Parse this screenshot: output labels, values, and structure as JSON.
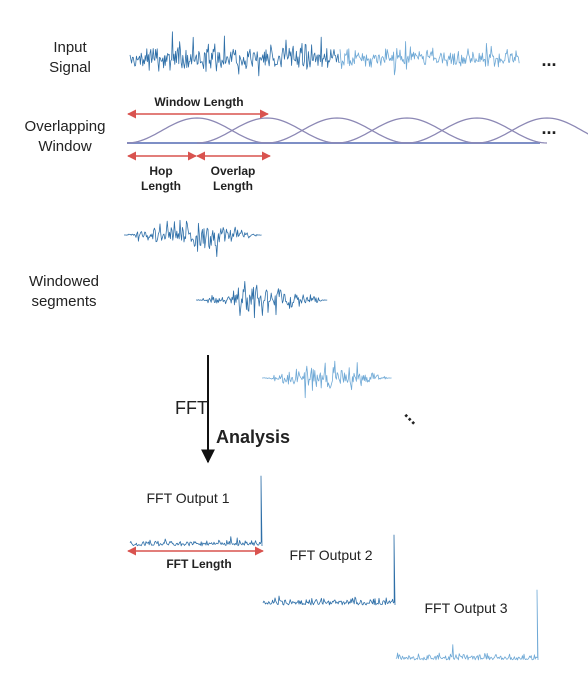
{
  "labels": {
    "input_signal_1": "Input",
    "input_signal_2": "Signal",
    "overlap_window_1": "Overlapping",
    "overlap_window_2": "Window",
    "window_length": "Window Length",
    "hop_length_1": "Hop",
    "hop_length_2": "Length",
    "overlap_length_1": "Overlap",
    "overlap_length_2": "Length",
    "windowed_1": "Windowed",
    "windowed_2": "segments",
    "fft": "FFT",
    "analysis": "Analysis",
    "fft_output_1": "FFT Output 1",
    "fft_output_2": "FFT Output 2",
    "fft_output_3": "FFT Output 3",
    "fft_length": "FFT Length",
    "ellipsis": "..."
  },
  "colors": {
    "signal_dark": "#2e6fa8",
    "signal_light": "#6fa9d6",
    "window_curve": "#8c88b5",
    "baseline": "#7e8fc6",
    "dimension_arrow": "#d9534f",
    "text": "#222222",
    "flow_arrow": "#111111"
  }
}
